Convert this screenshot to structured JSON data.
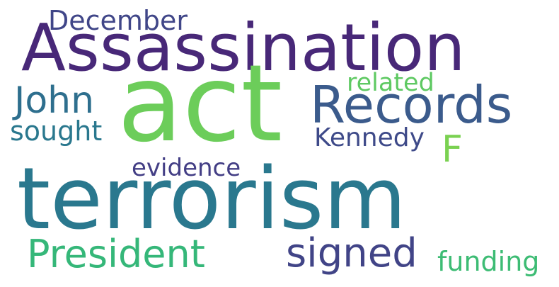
{
  "words": [
    {
      "key": "december",
      "text": "December",
      "color": "#404688"
    },
    {
      "key": "assassination",
      "text": "Assassination",
      "color": "#482878"
    },
    {
      "key": "john",
      "text": "John",
      "color": "#2e6f8e"
    },
    {
      "key": "act",
      "text": "act",
      "color": "#6ccd5a"
    },
    {
      "key": "records",
      "text": "Records",
      "color": "#3b5b8c"
    },
    {
      "key": "related",
      "text": "related",
      "color": "#5ec962"
    },
    {
      "key": "sought",
      "text": "sought",
      "color": "#2a788e"
    },
    {
      "key": "kennedy",
      "text": "Kennedy",
      "color": "#3e4a89"
    },
    {
      "key": "f",
      "text": "F",
      "color": "#7ad151"
    },
    {
      "key": "evidence",
      "text": "evidence",
      "color": "#433e85"
    },
    {
      "key": "terrorism",
      "text": "terrorism",
      "color": "#2a788e"
    },
    {
      "key": "president",
      "text": "President",
      "color": "#35b779"
    },
    {
      "key": "signed",
      "text": "signed",
      "color": "#414487"
    },
    {
      "key": "funding",
      "text": "funding",
      "color": "#3dbc74"
    }
  ]
}
